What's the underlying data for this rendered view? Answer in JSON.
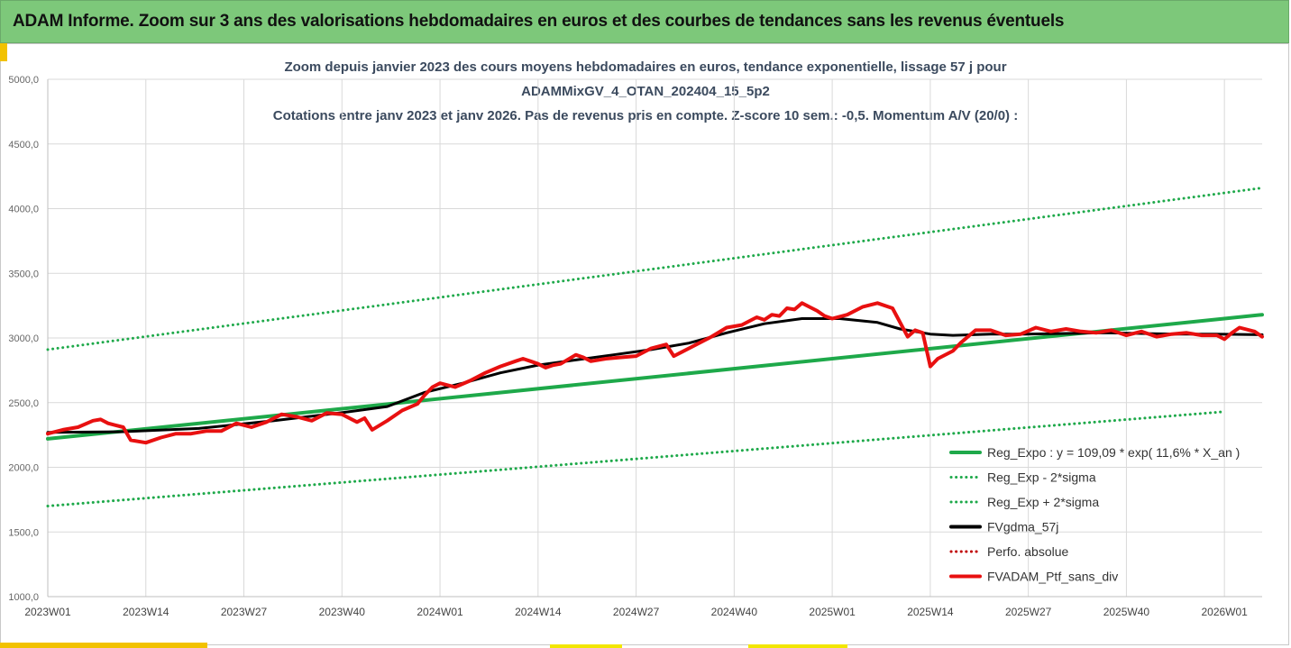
{
  "banner": {
    "title": "ADAM Informe. Zoom sur 3 ans des valorisations hebdomadaires en euros et des courbes de tendances sans les revenus éventuels"
  },
  "chart_data": {
    "type": "line",
    "title_lines": [
      "Zoom depuis janvier 2023 des cours moyens hebdomadaires  en euros, tendance exponentielle, lissage 57 j pour",
      "ADAMMixGV_4_OTAN_202404_15_5p2",
      "Cotations entre janv 2023 et janv 2026. Pas de revenus pris en compte. Z-score 10 sem.: -0,5. Momentum A/V (20/0) :"
    ],
    "ylim": [
      1000,
      5000
    ],
    "yticks": [
      "1000,0",
      "1500,0",
      "2000,0",
      "2500,0",
      "3000,0",
      "3500,0",
      "4000,0",
      "4500,0",
      "5000,0"
    ],
    "ytick_values": [
      1000,
      1500,
      2000,
      2500,
      3000,
      3500,
      4000,
      4500,
      5000
    ],
    "xlim": [
      0,
      161
    ],
    "xtick_labels": [
      "2023W01",
      "2023W14",
      "2023W27",
      "2023W40",
      "2024W01",
      "2024W14",
      "2024W27",
      "2024W40",
      "2025W01",
      "2025W14",
      "2025W27",
      "2025W40",
      "2026W01"
    ],
    "xtick_values": [
      0,
      13,
      26,
      39,
      52,
      65,
      78,
      91,
      104,
      117,
      130,
      143,
      156
    ],
    "legend": [
      {
        "label": "Reg_Expo : y = 109,09 * exp( 11,6% *  X_an )",
        "color": "#1ea94a",
        "style": "solid"
      },
      {
        "label": "Reg_Exp - 2*sigma",
        "color": "#1ea94a",
        "style": "dotted"
      },
      {
        "label": "Reg_Exp + 2*sigma",
        "color": "#1ea94a",
        "style": "dotted"
      },
      {
        "label": "FVgdma_57j",
        "color": "#000000",
        "style": "solid"
      },
      {
        "label": "Perfo. absolue",
        "color": "#c00000",
        "style": "dotted"
      },
      {
        "label": "FVADAM_Ptf_sans_div",
        "color": "#e81010",
        "style": "solid"
      }
    ],
    "series": [
      {
        "name": "Reg_Expo",
        "color": "#1ea94a",
        "style": "solid",
        "width": 4,
        "x": [
          0,
          156,
          161
        ],
        "y": [
          2220,
          3150,
          3180
        ]
      },
      {
        "name": "Reg_Exp + 2*sigma",
        "color": "#1ea94a",
        "style": "dotted",
        "width": 3,
        "x": [
          0,
          161
        ],
        "y": [
          2910,
          4160
        ]
      },
      {
        "name": "Reg_Exp - 2*sigma",
        "color": "#1ea94a",
        "style": "dotted",
        "width": 3,
        "x": [
          0,
          156
        ],
        "y": [
          1700,
          2430
        ]
      },
      {
        "name": "FVgdma_57j",
        "color": "#000000",
        "style": "solid",
        "width": 3,
        "x": [
          0,
          10,
          20,
          30,
          40,
          45,
          50,
          55,
          60,
          65,
          70,
          75,
          80,
          85,
          90,
          95,
          100,
          105,
          110,
          113,
          117,
          120,
          125,
          130,
          135,
          140,
          145,
          150,
          155,
          161
        ],
        "y": [
          2270,
          2275,
          2300,
          2360,
          2430,
          2470,
          2580,
          2650,
          2730,
          2790,
          2830,
          2870,
          2910,
          2960,
          3040,
          3110,
          3150,
          3150,
          3120,
          3070,
          3030,
          3020,
          3030,
          3030,
          3035,
          3040,
          3035,
          3030,
          3030,
          3025
        ]
      },
      {
        "name": "FVADAM_Ptf_sans_div",
        "color": "#e81010",
        "style": "solid",
        "width": 4,
        "x": [
          0,
          2,
          4,
          6,
          7,
          8,
          10,
          11,
          13,
          15,
          17,
          19,
          21,
          23,
          25,
          27,
          29,
          31,
          33,
          35,
          37,
          39,
          41,
          42,
          43,
          45,
          47,
          49,
          50,
          51,
          52,
          54,
          56,
          58,
          60,
          62,
          63,
          64,
          65,
          66,
          67,
          68,
          70,
          71,
          72,
          74,
          76,
          78,
          80,
          82,
          83,
          84,
          86,
          88,
          90,
          92,
          94,
          95,
          96,
          97,
          98,
          99,
          100,
          101,
          102,
          103,
          104,
          106,
          108,
          110,
          112,
          114,
          115,
          116,
          117,
          118,
          120,
          121,
          123,
          125,
          127,
          129,
          131,
          133,
          135,
          137,
          139,
          141,
          143,
          145,
          147,
          149,
          151,
          153,
          155,
          156,
          157,
          158,
          160,
          161
        ],
        "y": [
          2260,
          2290,
          2310,
          2360,
          2370,
          2340,
          2310,
          2210,
          2190,
          2230,
          2260,
          2260,
          2280,
          2280,
          2340,
          2310,
          2350,
          2410,
          2390,
          2360,
          2420,
          2410,
          2350,
          2380,
          2290,
          2360,
          2440,
          2490,
          2560,
          2620,
          2650,
          2620,
          2670,
          2730,
          2780,
          2820,
          2840,
          2820,
          2800,
          2770,
          2790,
          2800,
          2870,
          2850,
          2820,
          2840,
          2850,
          2860,
          2920,
          2950,
          2860,
          2890,
          2950,
          3010,
          3080,
          3100,
          3160,
          3140,
          3180,
          3170,
          3230,
          3220,
          3270,
          3240,
          3210,
          3170,
          3150,
          3180,
          3240,
          3270,
          3230,
          3010,
          3060,
          3040,
          2780,
          2840,
          2900,
          2960,
          3060,
          3060,
          3020,
          3030,
          3080,
          3050,
          3070,
          3050,
          3040,
          3060,
          3020,
          3050,
          3010,
          3030,
          3040,
          3020,
          3020,
          2990,
          3040,
          3080,
          3050,
          3010
        ]
      }
    ]
  }
}
